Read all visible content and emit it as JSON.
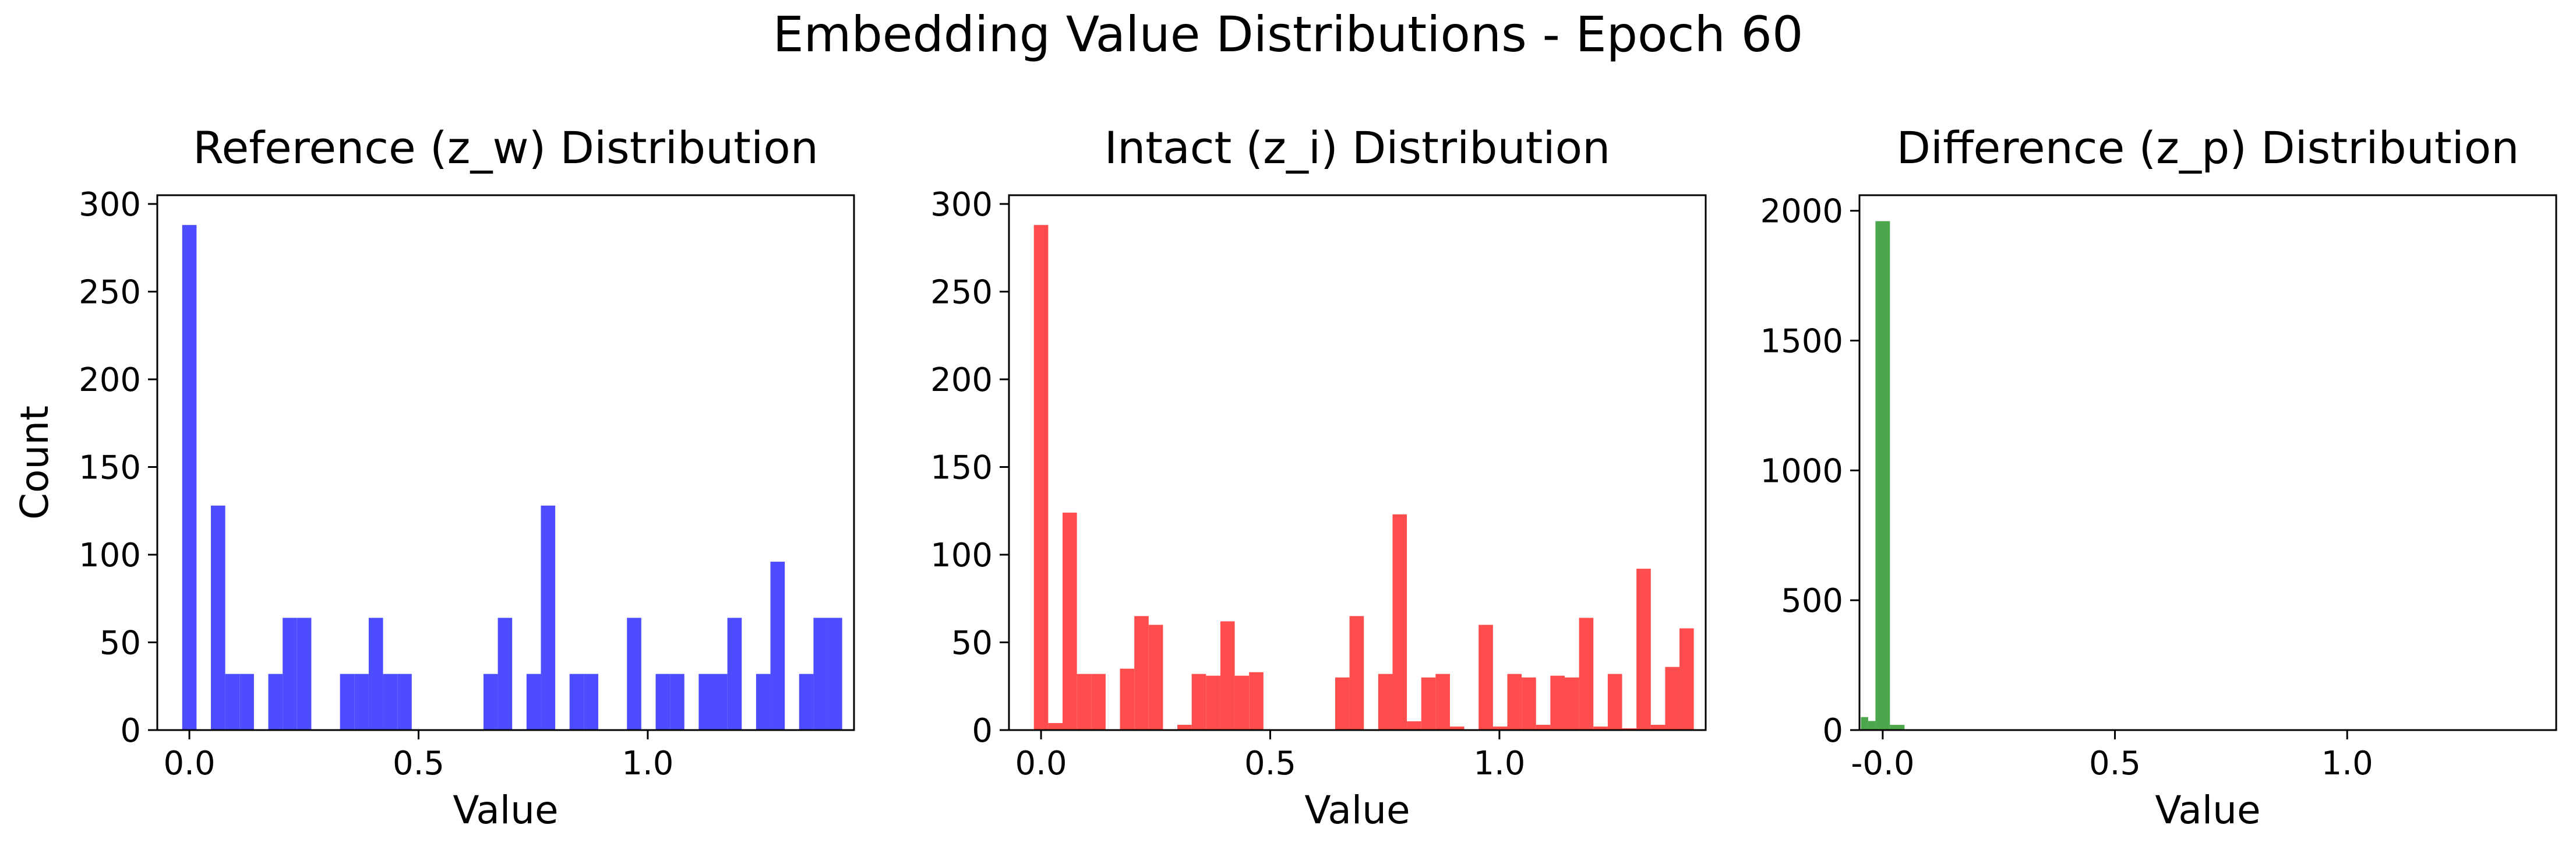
{
  "suptitle": "Embedding Value Distributions - Epoch 60",
  "chart_data": [
    {
      "type": "bar",
      "title": "Reference (z_w) Distribution",
      "xlabel": "Value",
      "ylabel": "Count",
      "color": "#4d4dff",
      "xlim": [
        -0.07,
        1.45
      ],
      "ylim": [
        0,
        305
      ],
      "xticks": [
        0.0,
        0.5,
        1.0
      ],
      "xtick_labels": [
        "0.0",
        "0.5",
        "1.0"
      ],
      "yticks": [
        0,
        50,
        100,
        150,
        200,
        250,
        300
      ],
      "ytick_labels": [
        "0",
        "50",
        "100",
        "150",
        "200",
        "250",
        "300"
      ],
      "bin_width": 0.0313,
      "bin_centers": [
        0.0,
        0.0626,
        0.0939,
        0.1252,
        0.1878,
        0.2191,
        0.2504,
        0.3443,
        0.3756,
        0.4069,
        0.4382,
        0.4695,
        0.6573,
        0.6886,
        0.7512,
        0.7825,
        0.8451,
        0.8764,
        0.9703,
        1.0329,
        1.0642,
        1.1268,
        1.1581,
        1.1894,
        1.252,
        1.2833,
        1.3459,
        1.3772,
        1.4085
      ],
      "values": [
        288,
        128,
        32,
        32,
        32,
        64,
        64,
        32,
        32,
        64,
        32,
        32,
        32,
        64,
        32,
        128,
        32,
        32,
        64,
        32,
        32,
        32,
        32,
        64,
        32,
        96,
        32,
        64,
        64
      ]
    },
    {
      "type": "bar",
      "title": "Intact (z_i) Distribution",
      "xlabel": "Value",
      "ylabel": "",
      "color": "#ff4d4d",
      "xlim": [
        -0.07,
        1.45
      ],
      "ylim": [
        0,
        305
      ],
      "xticks": [
        0.0,
        0.5,
        1.0
      ],
      "xtick_labels": [
        "0.0",
        "0.5",
        "1.0"
      ],
      "yticks": [
        0,
        50,
        100,
        150,
        200,
        250,
        300
      ],
      "ytick_labels": [
        "0",
        "50",
        "100",
        "150",
        "200",
        "250",
        "300"
      ],
      "bin_width": 0.0313,
      "bin_centers": [
        0.0,
        0.0313,
        0.0626,
        0.0939,
        0.1252,
        0.1878,
        0.2191,
        0.2504,
        0.313,
        0.3443,
        0.3756,
        0.4069,
        0.4382,
        0.4695,
        0.6573,
        0.6886,
        0.7512,
        0.7825,
        0.8138,
        0.8451,
        0.8764,
        0.9077,
        0.9703,
        1.0016,
        1.0329,
        1.0642,
        1.0955,
        1.1268,
        1.1581,
        1.1894,
        1.2207,
        1.252,
        1.2833,
        1.3146,
        1.3459,
        1.3772,
        1.4085
      ],
      "values": [
        288,
        4,
        124,
        32,
        32,
        35,
        65,
        60,
        3,
        32,
        31,
        62,
        31,
        33,
        30,
        65,
        32,
        123,
        5,
        30,
        32,
        2,
        60,
        2,
        32,
        30,
        3,
        31,
        30,
        64,
        2,
        32,
        1,
        92,
        3,
        36,
        58
      ]
    },
    {
      "type": "bar",
      "title": "Difference (z_p) Distribution",
      "xlabel": "Value",
      "ylabel": "",
      "color": "#4ca64c",
      "xlim": [
        -0.05,
        1.45
      ],
      "ylim": [
        0,
        2060
      ],
      "xticks": [
        0.0,
        0.5,
        1.0
      ],
      "xtick_labels": [
        "-0.0",
        "0.5",
        "1.0"
      ],
      "yticks": [
        0,
        500,
        1000,
        1500,
        2000
      ],
      "ytick_labels": [
        "0",
        "500",
        "1000",
        "1500",
        "2000"
      ],
      "bin_width": 0.0313,
      "bin_centers": [
        -0.0313,
        0.0,
        0.0313
      ],
      "sub_bins": [
        [
          -0.0469,
          -0.0313,
          50
        ],
        [
          -0.0313,
          -0.0156,
          35
        ],
        [
          -0.0156,
          0.0156,
          1960
        ],
        [
          0.0156,
          0.0469,
          20
        ]
      ],
      "values": [
        50,
        35,
        1960,
        20
      ]
    }
  ]
}
